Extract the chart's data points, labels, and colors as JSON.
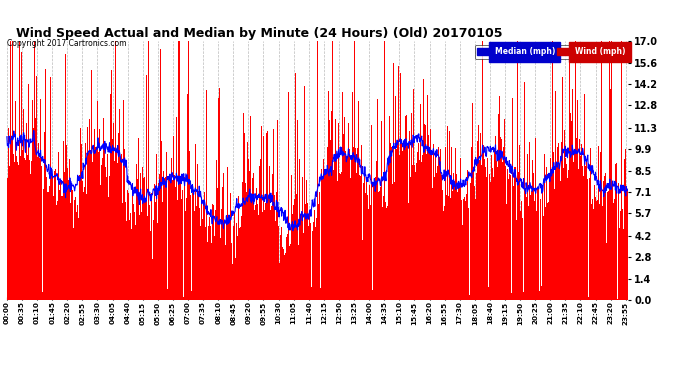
{
  "title": "Wind Speed Actual and Median by Minute (24 Hours) (Old) 20170105",
  "copyright": "Copyright 2017 Cartronics.com",
  "yticks": [
    0.0,
    1.4,
    2.8,
    4.2,
    5.7,
    7.1,
    8.5,
    9.9,
    11.3,
    12.8,
    14.2,
    15.6,
    17.0
  ],
  "ylim": [
    0.0,
    17.0
  ],
  "wind_color": "#FF0000",
  "median_color": "#0000FF",
  "bar_color": "#FF0000",
  "background_color": "#FFFFFF",
  "grid_color": "#BBBBBB",
  "legend_median_bg": "#0000CC",
  "legend_wind_bg": "#CC0000",
  "n_minutes": 1440,
  "seed": 12345
}
